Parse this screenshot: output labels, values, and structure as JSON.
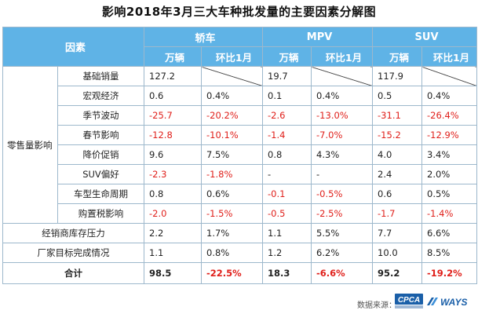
{
  "title": "影响2018年3月三大车种批发量的主要因素分解图",
  "header": {
    "factor_label": "因素",
    "groups": [
      "轿车",
      "MPV",
      "SUV"
    ],
    "sub_labels": [
      "万辆",
      "环比1月"
    ]
  },
  "group_label": "零售量影响",
  "rows": [
    {
      "label": "基础销量",
      "sedan": [
        "127.2",
        ""
      ],
      "mpv": [
        "19.7",
        ""
      ],
      "suv": [
        "117.9",
        ""
      ]
    },
    {
      "label": "宏观经济",
      "sedan": [
        "0.6",
        "0.4%"
      ],
      "mpv": [
        "0.1",
        "0.4%"
      ],
      "suv": [
        "0.5",
        "0.4%"
      ]
    },
    {
      "label": "季节波动",
      "sedan": [
        "-25.7",
        "-20.2%"
      ],
      "mpv": [
        "-2.6",
        "-13.0%"
      ],
      "suv": [
        "-31.1",
        "-26.4%"
      ]
    },
    {
      "label": "春节影响",
      "sedan": [
        "-12.8",
        "-10.1%"
      ],
      "mpv": [
        "-1.4",
        "-7.0%"
      ],
      "suv": [
        "-15.2",
        "-12.9%"
      ]
    },
    {
      "label": "降价促销",
      "sedan": [
        "9.6",
        "7.5%"
      ],
      "mpv": [
        "0.8",
        "4.3%"
      ],
      "suv": [
        "4.0",
        "3.4%"
      ]
    },
    {
      "label": "SUV偏好",
      "sedan": [
        "-2.3",
        "-1.8%"
      ],
      "mpv": [
        "-",
        "-"
      ],
      "suv": [
        "2.4",
        "2.0%"
      ]
    },
    {
      "label": "车型生命周期",
      "sedan": [
        "0.8",
        "0.6%"
      ],
      "mpv": [
        "-0.1",
        "-0.5%"
      ],
      "suv": [
        "0.6",
        "0.5%"
      ]
    },
    {
      "label": "购置税影响",
      "sedan": [
        "-2.0",
        "-1.5%"
      ],
      "mpv": [
        "-0.5",
        "-2.5%"
      ],
      "suv": [
        "-1.7",
        "-1.4%"
      ]
    },
    {
      "label": "经销商库存压力",
      "sedan": [
        "2.2",
        "1.7%"
      ],
      "mpv": [
        "1.1",
        "5.5%"
      ],
      "suv": [
        "7.7",
        "6.6%"
      ]
    },
    {
      "label": "厂家目标完成情况",
      "sedan": [
        "1.1",
        "0.8%"
      ],
      "mpv": [
        "1.2",
        "6.2%"
      ],
      "suv": [
        "10.0",
        "8.5%"
      ]
    },
    {
      "label": "合计",
      "sedan": [
        "98.5",
        "-22.5%"
      ],
      "mpv": [
        "18.3",
        "-6.6%"
      ],
      "suv": [
        "95.2",
        "-19.2%"
      ]
    }
  ],
  "footer": {
    "source_label": "数据来源："
  },
  "logos": {
    "cpca": "CPCA",
    "ways": "WAYS"
  },
  "colors": {
    "header_bg": "#5fb3e6",
    "negative": "#e0201b",
    "border": "#9db8cc"
  },
  "chart_data": {
    "type": "table",
    "title": "影响2018年3月三大车种批发量的主要因素分解图",
    "columns": [
      "因素",
      "轿车 万辆",
      "轿车 环比1月",
      "MPV 万辆",
      "MPV 环比1月",
      "SUV 万辆",
      "SUV 环比1月"
    ],
    "factors": [
      "基础销量",
      "宏观经济",
      "季节波动",
      "春节影响",
      "降价促销",
      "SUV偏好",
      "车型生命周期",
      "购置税影响",
      "经销商库存压力",
      "厂家目标完成情况",
      "合计"
    ],
    "series": [
      {
        "name": "轿车 万辆",
        "values": [
          127.2,
          0.6,
          -25.7,
          -12.8,
          9.6,
          -2.3,
          0.8,
          -2.0,
          2.2,
          1.1,
          98.5
        ]
      },
      {
        "name": "轿车 环比1月",
        "values": [
          null,
          0.4,
          -20.2,
          -10.1,
          7.5,
          -1.8,
          0.6,
          -1.5,
          1.7,
          0.8,
          -22.5
        ]
      },
      {
        "name": "MPV 万辆",
        "values": [
          19.7,
          0.1,
          -2.6,
          -1.4,
          0.8,
          null,
          -0.1,
          -0.5,
          1.1,
          1.2,
          18.3
        ]
      },
      {
        "name": "MPV 环比1月",
        "values": [
          null,
          0.4,
          -13.0,
          -7.0,
          4.3,
          null,
          -0.5,
          -2.5,
          5.5,
          6.2,
          -6.6
        ]
      },
      {
        "name": "SUV 万辆",
        "values": [
          117.9,
          0.5,
          -31.1,
          -15.2,
          4.0,
          2.4,
          0.6,
          -1.7,
          7.7,
          10.0,
          95.2
        ]
      },
      {
        "name": "SUV 环比1月",
        "values": [
          null,
          0.4,
          -26.4,
          -12.9,
          3.4,
          2.0,
          0.5,
          -1.4,
          6.6,
          8.5,
          -19.2
        ]
      }
    ]
  }
}
